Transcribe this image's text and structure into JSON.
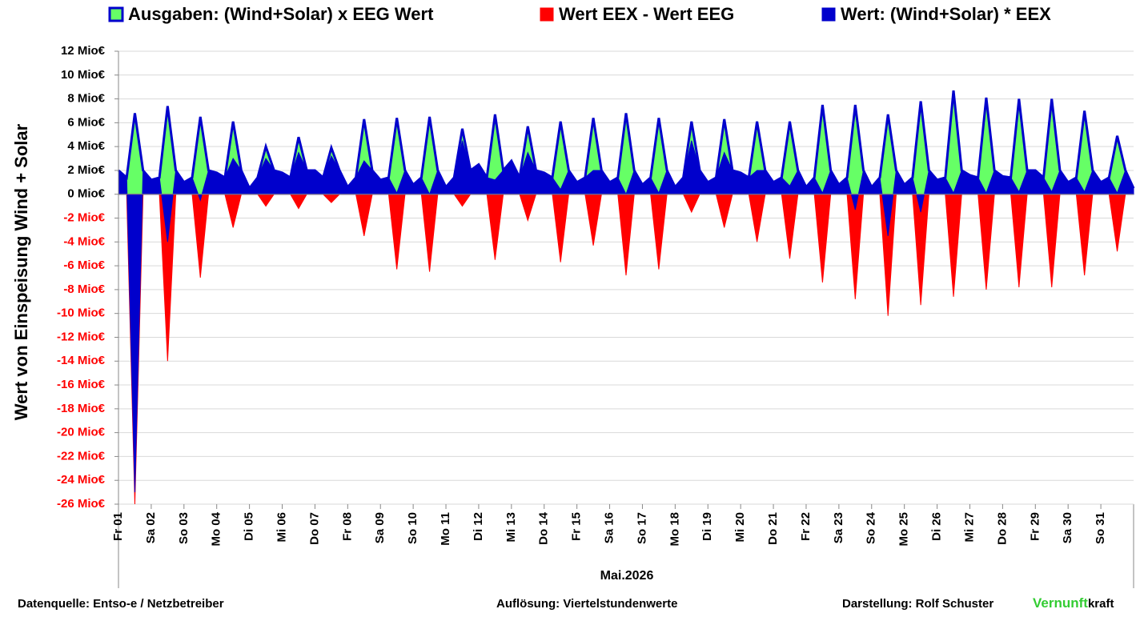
{
  "chart_data": {
    "type": "area",
    "y_label": "Wert von Einspeisung Wind + Solar",
    "x_label": "Mai.2026",
    "x": [
      1,
      1.25,
      1.5,
      1.75,
      2,
      2.25,
      2.5,
      2.75,
      3,
      3.25,
      3.5,
      3.75,
      4,
      4.25,
      4.5,
      4.75,
      5,
      5.25,
      5.5,
      5.75,
      6,
      6.25,
      6.5,
      6.75,
      7,
      7.25,
      7.5,
      7.75,
      8,
      8.25,
      8.5,
      8.75,
      9,
      9.25,
      9.5,
      9.75,
      10,
      10.25,
      10.5,
      10.75,
      11,
      11.25,
      11.5,
      11.75,
      12,
      12.25,
      12.5,
      12.75,
      13,
      13.25,
      13.5,
      13.75,
      14,
      14.25,
      14.5,
      14.75,
      15,
      15.25,
      15.5,
      15.75,
      16,
      16.25,
      16.5,
      16.75,
      17,
      17.25,
      17.5,
      17.75,
      18,
      18.25,
      18.5,
      18.75,
      19,
      19.25,
      19.5,
      19.75,
      20,
      20.25,
      20.5,
      20.75,
      21,
      21.25,
      21.5,
      21.75,
      22,
      22.25,
      22.5,
      22.75,
      23,
      23.25,
      23.5,
      23.75,
      24,
      24.25,
      24.5,
      24.75,
      25,
      25.25,
      25.5,
      25.75,
      26,
      26.25,
      26.5,
      26.75,
      27,
      27.25,
      27.5,
      27.75,
      28,
      28.25,
      28.5,
      28.75,
      29,
      29.25,
      29.5,
      29.75,
      30,
      30.25,
      30.5,
      30.75,
      31,
      31.25,
      31.5,
      31.75,
      32
    ],
    "series": [
      {
        "name": "Ausgaben: (Wind+Solar) x EEG Wert",
        "color": "#66ff66",
        "edgecolor": "#0000cc",
        "values": [
          2.0,
          1.4,
          6.8,
          2.0,
          1.2,
          1.4,
          7.4,
          2.0,
          1.0,
          1.4,
          6.5,
          2.0,
          1.8,
          1.4,
          6.1,
          2.0,
          0.5,
          1.4,
          4.0,
          2.0,
          1.8,
          1.4,
          4.8,
          2.0,
          2.0,
          1.4,
          3.9,
          2.0,
          0.6,
          1.4,
          6.3,
          2.0,
          1.2,
          1.4,
          6.4,
          2.0,
          0.8,
          1.4,
          6.5,
          2.0,
          0.6,
          1.4,
          5.5,
          2.0,
          2.5,
          1.4,
          6.7,
          2.0,
          2.8,
          1.4,
          5.7,
          2.0,
          1.8,
          1.4,
          6.1,
          2.0,
          1.0,
          1.4,
          6.4,
          2.0,
          1.0,
          1.4,
          6.8,
          2.0,
          0.8,
          1.4,
          6.4,
          2.0,
          0.6,
          1.4,
          6.1,
          2.0,
          1.0,
          1.4,
          6.3,
          2.0,
          1.8,
          1.4,
          6.1,
          2.0,
          1.0,
          1.4,
          6.1,
          2.0,
          0.6,
          1.4,
          7.5,
          2.0,
          0.8,
          1.4,
          7.5,
          2.0,
          0.6,
          1.4,
          6.7,
          2.0,
          0.8,
          1.4,
          7.8,
          2.0,
          1.2,
          1.4,
          8.7,
          2.0,
          1.6,
          1.4,
          8.1,
          2.0,
          1.5,
          1.4,
          8.0,
          2.0,
          2.0,
          1.4,
          8.0,
          2.0,
          1.0,
          1.4,
          7.0,
          2.0,
          1.0,
          1.4,
          4.9,
          2.0,
          0.5
        ]
      },
      {
        "name": "Wert EEX - Wert EEG",
        "color": "#ff0000",
        "values": [
          0,
          0,
          -26,
          0,
          0,
          0,
          -14,
          0,
          0,
          0,
          -7,
          0,
          0,
          0,
          -2.8,
          0,
          0,
          0,
          -1,
          0,
          0,
          0,
          -1.2,
          0,
          0,
          0,
          -0.7,
          0,
          0,
          0,
          -3.5,
          0,
          0,
          0,
          -6.3,
          0,
          0,
          0,
          -6.5,
          0,
          0,
          0,
          -1,
          0,
          0,
          0,
          -5.5,
          0,
          0,
          0,
          -2.2,
          0,
          0,
          0,
          -5.7,
          0,
          0,
          0,
          -4.3,
          0,
          0,
          0,
          -6.8,
          0,
          0,
          0,
          -6.3,
          0,
          0,
          0,
          -1.5,
          0,
          0,
          0,
          -2.8,
          0,
          0,
          0,
          -4,
          0,
          0,
          0,
          -5.4,
          0,
          0,
          0,
          -7.4,
          0,
          0,
          0,
          -8.8,
          0,
          0,
          0,
          -10.2,
          0,
          0,
          0,
          -9.3,
          0,
          0,
          0,
          -8.6,
          0,
          0,
          0,
          -8,
          0,
          0,
          0,
          -7.8,
          0,
          0,
          0,
          -7.8,
          0,
          0,
          0,
          -6.8,
          0,
          0,
          0,
          -4.8,
          0,
          0
        ]
      },
      {
        "name": "Wert: (Wind+Solar) * EEX",
        "color": "#0000cc",
        "values": [
          2.0,
          1.4,
          -25,
          2.0,
          1.2,
          1.4,
          -4,
          2.0,
          1.0,
          1.4,
          -0.5,
          2.0,
          1.8,
          1.4,
          3,
          2.0,
          0.5,
          1.4,
          3,
          2.0,
          1.8,
          1.4,
          3.5,
          2.0,
          2.0,
          1.4,
          3.2,
          2.0,
          0.6,
          1.4,
          2.8,
          2.0,
          1.2,
          1.4,
          0.1,
          2.0,
          0.8,
          1.4,
          0,
          2.0,
          0.6,
          1.4,
          4.5,
          2.0,
          2.5,
          1.4,
          1.2,
          2.0,
          2.8,
          1.4,
          3.5,
          2.0,
          1.8,
          1.4,
          0.4,
          2.0,
          1.0,
          1.4,
          2,
          2.0,
          1.0,
          1.4,
          0,
          2.0,
          0.8,
          1.4,
          0.1,
          2.0,
          0.6,
          1.4,
          4.5,
          2.0,
          1.0,
          1.4,
          3.5,
          2.0,
          1.8,
          1.4,
          2,
          2.0,
          1.0,
          1.4,
          0.7,
          2.0,
          0.6,
          1.4,
          0.1,
          2.0,
          0.8,
          1.4,
          -1.3,
          2.0,
          0.6,
          1.4,
          -3.5,
          2.0,
          0.8,
          1.4,
          -1.5,
          2.0,
          1.2,
          1.4,
          0.1,
          2.0,
          1.6,
          1.4,
          0.1,
          2.0,
          1.5,
          1.4,
          0.2,
          2.0,
          2.0,
          1.4,
          0.2,
          2.0,
          1.0,
          1.4,
          0.2,
          2.0,
          1.0,
          1.4,
          0.1,
          2.0,
          0.5
        ]
      }
    ],
    "xlim": [
      1,
      32
    ],
    "xticks": [
      {
        "value": 1,
        "label": "Fr 01"
      },
      {
        "value": 2,
        "label": "Sa 02"
      },
      {
        "value": 3,
        "label": "So 03"
      },
      {
        "value": 4,
        "label": "Mo 04"
      },
      {
        "value": 5,
        "label": "Di 05"
      },
      {
        "value": 6,
        "label": "Mi 06"
      },
      {
        "value": 7,
        "label": "Do 07"
      },
      {
        "value": 8,
        "label": "Fr 08"
      },
      {
        "value": 9,
        "label": "Sa 09"
      },
      {
        "value": 10,
        "label": "So 10"
      },
      {
        "value": 11,
        "label": "Mo 11"
      },
      {
        "value": 12,
        "label": "Di 12"
      },
      {
        "value": 13,
        "label": "Mi 13"
      },
      {
        "value": 14,
        "label": "Do 14"
      },
      {
        "value": 15,
        "label": "Fr 15"
      },
      {
        "value": 16,
        "label": "Sa 16"
      },
      {
        "value": 17,
        "label": "So 17"
      },
      {
        "value": 18,
        "label": "Mo 18"
      },
      {
        "value": 19,
        "label": "Di 19"
      },
      {
        "value": 20,
        "label": "Mi 20"
      },
      {
        "value": 21,
        "label": "Do 21"
      },
      {
        "value": 22,
        "label": "Fr 22"
      },
      {
        "value": 23,
        "label": "Sa 23"
      },
      {
        "value": 24,
        "label": "So 24"
      },
      {
        "value": 25,
        "label": "Mo 25"
      },
      {
        "value": 26,
        "label": "Di 26"
      },
      {
        "value": 27,
        "label": "Mi 27"
      },
      {
        "value": 28,
        "label": "Do 28"
      },
      {
        "value": 29,
        "label": "Fr 29"
      },
      {
        "value": 30,
        "label": "Sa 30"
      },
      {
        "value": 31,
        "label": "So 31"
      }
    ],
    "ylim": [
      -26,
      12
    ],
    "yticks": [
      {
        "value": 12,
        "label": "12 Mio€"
      },
      {
        "value": 10,
        "label": "10 Mio€"
      },
      {
        "value": 8,
        "label": "8 Mio€"
      },
      {
        "value": 6,
        "label": "6 Mio€"
      },
      {
        "value": 4,
        "label": "4 Mio€"
      },
      {
        "value": 2,
        "label": "2 Mio€"
      },
      {
        "value": 0,
        "label": "0 Mio€"
      },
      {
        "value": -2,
        "label": "-2 Mio€"
      },
      {
        "value": -4,
        "label": "-4 Mio€"
      },
      {
        "value": -6,
        "label": "-6 Mio€"
      },
      {
        "value": -8,
        "label": "-8 Mio€"
      },
      {
        "value": -10,
        "label": "-10 Mio€"
      },
      {
        "value": -12,
        "label": "-12 Mio€"
      },
      {
        "value": -14,
        "label": "-14 Mio€"
      },
      {
        "value": -16,
        "label": "-16 Mio€"
      },
      {
        "value": -18,
        "label": "-18 Mio€"
      },
      {
        "value": -20,
        "label": "-20 Mio€"
      },
      {
        "value": -22,
        "label": "-22 Mio€"
      },
      {
        "value": -24,
        "label": "-24 Mio€"
      },
      {
        "value": -26,
        "label": "-26 Mio€"
      }
    ],
    "negative_tick_color": "#ff0000",
    "grid": true,
    "legend": "top"
  },
  "footer": {
    "source": "Datenquelle:  Entso-e  / Netzbetreiber",
    "resolution": "Auflösung: Viertelstundenwerte",
    "author": "Darstellung:  Rolf Schuster",
    "brand_green": "Vernunft",
    "brand_rest": "kraft",
    "brand_color": "#33cc33"
  }
}
